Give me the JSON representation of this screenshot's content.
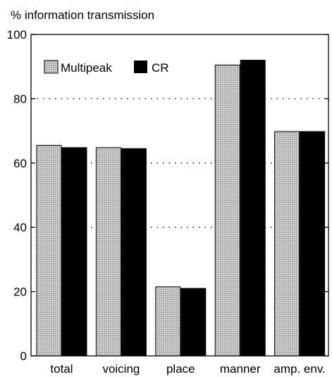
{
  "chart_data": {
    "type": "bar",
    "title": "",
    "xlabel": "",
    "ylabel": "% information transmission",
    "categories": [
      "total",
      "voicing",
      "place",
      "manner",
      "amp. env."
    ],
    "series": [
      {
        "name": "Multipeak",
        "values": [
          65.5,
          64.8,
          21.5,
          90.5,
          69.8
        ],
        "color": "#c8c8c8",
        "pattern": "stipple"
      },
      {
        "name": "CR",
        "values": [
          64.8,
          64.5,
          21.0,
          92.0,
          69.8
        ],
        "color": "#000000"
      }
    ],
    "ylim": [
      0,
      100
    ],
    "yticks": [
      0,
      20,
      40,
      60,
      80,
      100
    ],
    "grid": "dotted horizontal at 40, 60, 80",
    "legend_position": "top-left"
  }
}
